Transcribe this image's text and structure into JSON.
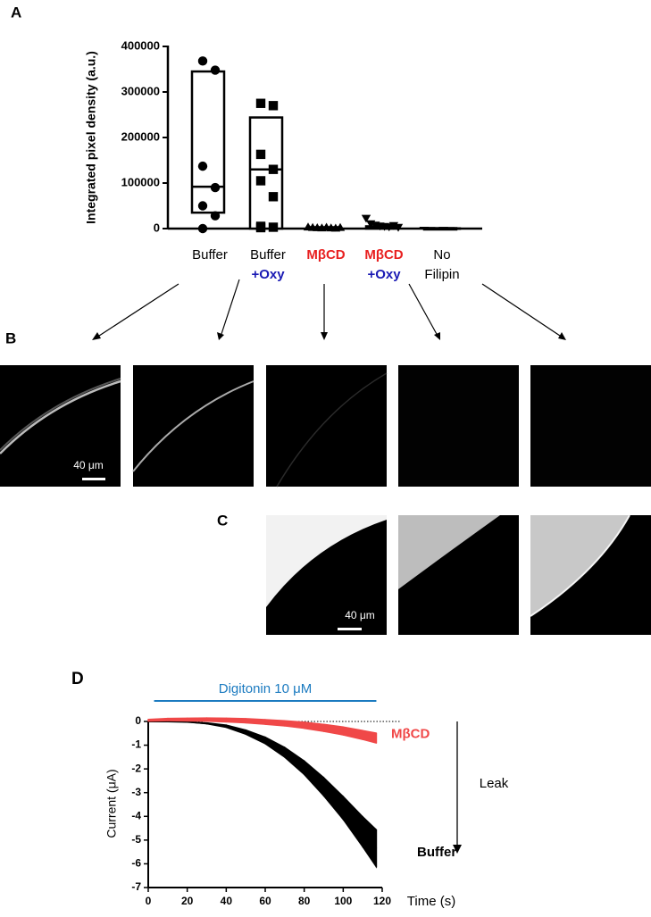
{
  "panels": {
    "a": "A",
    "b": "B",
    "c": "C",
    "d": "D"
  },
  "scale_bar_label": "40 μm",
  "chart_data": [
    {
      "type": "dot_box",
      "ylabel": "Integrated pixel density (a.u.)",
      "ylim": [
        0,
        400000
      ],
      "yticks": [
        0,
        100000,
        200000,
        300000,
        400000
      ],
      "categories": [
        [
          "Buffer"
        ],
        [
          "Buffer",
          "+Oxy"
        ],
        [
          "MβCD"
        ],
        [
          "MβCD",
          "+Oxy"
        ],
        [
          "No",
          "Filipin"
        ]
      ],
      "category_styles": [
        [
          {
            "color": "#000000",
            "bold": false
          }
        ],
        [
          {
            "color": "#000000",
            "bold": false
          },
          {
            "color": "#1a1ab4",
            "bold": true
          }
        ],
        [
          {
            "color": "#e82020",
            "bold": true
          }
        ],
        [
          {
            "color": "#e82020",
            "bold": true
          },
          {
            "color": "#1a1ab4",
            "bold": true
          }
        ],
        [
          {
            "color": "#000000",
            "bold": false
          },
          {
            "color": "#000000",
            "bold": false
          }
        ]
      ],
      "series": [
        {
          "marker": "circle",
          "color": "#000000",
          "values": [
            368000,
            348000,
            137000,
            90000,
            50000,
            28000,
            0
          ],
          "box_low": 35000,
          "box_high": 345000,
          "median": 92000
        },
        {
          "marker": "square",
          "color": "#000000",
          "values": [
            275000,
            270000,
            163000,
            130000,
            105000,
            70000,
            5000,
            3000,
            2000
          ],
          "box_low": 0,
          "box_high": 244000,
          "median": 130000
        },
        {
          "marker": "triangle-up",
          "color": "#000000",
          "values": [
            3000,
            2000,
            1500,
            1000,
            2500,
            1000,
            500,
            2000
          ],
          "box_low": 0,
          "box_high": 3000,
          "median": 1000
        },
        {
          "marker": "triangle-down",
          "color": "#000000",
          "values": [
            20000,
            8000,
            5000,
            3000,
            2000,
            1000,
            4000,
            0
          ],
          "box_low": 0,
          "box_high": 5000,
          "median": 2000
        },
        {
          "marker": "dash",
          "color": "#000000",
          "values": [
            1000,
            500,
            0,
            800,
            300,
            0
          ],
          "box_low": 0,
          "box_high": 1000,
          "median": 300
        }
      ]
    },
    {
      "type": "line_band",
      "xlabel": "Time (s)",
      "ylabel": "Current (μA)",
      "xlim": [
        0,
        120
      ],
      "xticks": [
        0,
        20,
        40,
        60,
        80,
        100,
        120
      ],
      "ylim": [
        -7,
        0
      ],
      "yticks": [
        0,
        -1,
        -2,
        -3,
        -4,
        -5,
        -6,
        -7
      ],
      "x": [
        0,
        10,
        20,
        30,
        40,
        50,
        60,
        70,
        80,
        90,
        100,
        110,
        117
      ],
      "series": [
        {
          "name": "MβCD",
          "color": "#f04848",
          "values": [
            0.05,
            0.08,
            0.08,
            0.08,
            0.06,
            0.03,
            -0.02,
            -0.08,
            -0.16,
            -0.27,
            -0.4,
            -0.57,
            -0.7
          ],
          "errors": [
            0.05,
            0.06,
            0.07,
            0.08,
            0.09,
            0.1,
            0.11,
            0.12,
            0.14,
            0.16,
            0.18,
            0.2,
            0.22
          ]
        },
        {
          "name": "Buffer",
          "color": "#000000",
          "values": [
            0,
            0,
            -0.02,
            -0.08,
            -0.2,
            -0.45,
            -0.8,
            -1.3,
            -1.95,
            -2.75,
            -3.65,
            -4.65,
            -5.35
          ],
          "errors": [
            0,
            0,
            0.01,
            0.03,
            0.06,
            0.1,
            0.15,
            0.22,
            0.3,
            0.4,
            0.5,
            0.65,
            0.8
          ]
        }
      ],
      "annotation": "Digitonin 10 μM",
      "annotation_span": [
        3,
        117
      ],
      "annotation_color": "#1a7ac0",
      "arrow_label": "Leak"
    }
  ]
}
